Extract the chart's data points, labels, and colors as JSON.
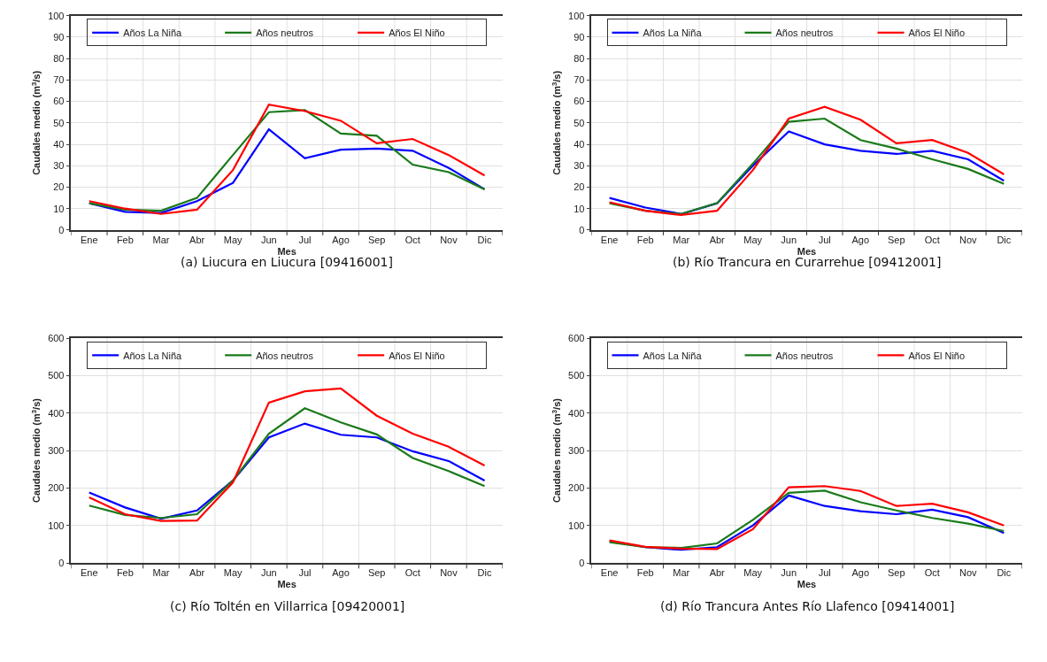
{
  "chart_data": [
    {
      "type": "line",
      "xlabel": "Mes",
      "ylabel": "Caudales medio (m$^{3}$/s)",
      "categories": [
        "Ene",
        "Feb",
        "Mar",
        "Abr",
        "May",
        "Jun",
        "Jul",
        "Ago",
        "Sep",
        "Oct",
        "Nov",
        "Dic"
      ],
      "ylim": [
        0,
        100
      ],
      "yticks": [
        0,
        10,
        20,
        30,
        40,
        50,
        60,
        70,
        80,
        90,
        100
      ],
      "grid": true,
      "legend": "top",
      "marker": "none",
      "line_style": "solid",
      "annotations": [
        "(a) Liucura en Liucura [09416001]"
      ],
      "series": [
        {
          "name": "Años La Niña",
          "color": "#0000ff",
          "values": [
            12.5,
            8.5,
            8,
            13.5,
            22,
            47,
            33.5,
            37.5,
            38,
            37,
            29,
            19
          ]
        },
        {
          "name": "Años neutros",
          "color": "#1a7a1a",
          "values": [
            12.5,
            9.5,
            9,
            15,
            35,
            55,
            56,
            45,
            44,
            30.5,
            27,
            19
          ]
        },
        {
          "name": "Años El Niño",
          "color": "#ff0000",
          "values": [
            13.5,
            10,
            7.5,
            9.5,
            28,
            58.5,
            55.5,
            51,
            40.5,
            42.5,
            35,
            25.5
          ]
        }
      ]
    },
    {
      "type": "line",
      "xlabel": "Mes",
      "ylabel": "Caudales medio (m$^{3}$/s)",
      "categories": [
        "Ene",
        "Feb",
        "Mar",
        "Abr",
        "May",
        "Jun",
        "Jul",
        "Ago",
        "Sep",
        "Oct",
        "Nov",
        "Dic"
      ],
      "ylim": [
        0,
        100
      ],
      "yticks": [
        0,
        10,
        20,
        30,
        40,
        50,
        60,
        70,
        80,
        90,
        100
      ],
      "grid": true,
      "legend": "top",
      "marker": "none",
      "line_style": "solid",
      "annotations": [
        "(b) Río Trancura en Curarrehue [09412001]"
      ],
      "series": [
        {
          "name": "Años La Niña",
          "color": "#0000ff",
          "values": [
            15,
            10.5,
            7.5,
            12.5,
            30,
            46,
            40,
            37,
            35.5,
            37,
            33,
            23
          ]
        },
        {
          "name": "Años neutros",
          "color": "#1a7a1a",
          "values": [
            12.5,
            9,
            7.5,
            12.5,
            31,
            50.5,
            52,
            42,
            38,
            33,
            28.5,
            21.5
          ]
        },
        {
          "name": "Años El Niño",
          "color": "#ff0000",
          "values": [
            13,
            9,
            7,
            9,
            28,
            52,
            57.5,
            51.5,
            40.5,
            42,
            36,
            26
          ]
        }
      ]
    },
    {
      "type": "line",
      "xlabel": "Mes",
      "ylabel": "Caudales medio (m$^{3}$/s)",
      "categories": [
        "Ene",
        "Feb",
        "Mar",
        "Abr",
        "May",
        "Jun",
        "Jul",
        "Ago",
        "Sep",
        "Oct",
        "Nov",
        "Dic"
      ],
      "ylim": [
        0,
        600
      ],
      "yticks": [
        0,
        100,
        200,
        300,
        400,
        500,
        600
      ],
      "grid": true,
      "legend": "top",
      "marker": "none",
      "line_style": "solid",
      "annotations": [
        "(c) Río Toltén en Villarrica [09420001]"
      ],
      "series": [
        {
          "name": "Años La Niña",
          "color": "#0000ff",
          "values": [
            188,
            148,
            118,
            140,
            220,
            335,
            372,
            342,
            335,
            298,
            272,
            220
          ]
        },
        {
          "name": "Años neutros",
          "color": "#1a7a1a",
          "values": [
            153,
            128,
            120,
            130,
            220,
            345,
            413,
            375,
            343,
            280,
            245,
            205
          ]
        },
        {
          "name": "Años El Niño",
          "color": "#ff0000",
          "values": [
            175,
            130,
            112,
            113,
            215,
            428,
            458,
            466,
            393,
            345,
            310,
            260
          ]
        }
      ]
    },
    {
      "type": "line",
      "xlabel": "Mes",
      "ylabel": "Caudales medio (m$^{3}$/s)",
      "categories": [
        "Ene",
        "Feb",
        "Mar",
        "Abr",
        "May",
        "Jun",
        "Jul",
        "Ago",
        "Sep",
        "Oct",
        "Nov",
        "Dic"
      ],
      "ylim": [
        0,
        600
      ],
      "yticks": [
        0,
        100,
        200,
        300,
        400,
        500,
        600
      ],
      "grid": true,
      "legend": "top",
      "marker": "none",
      "line_style": "solid",
      "annotations": [
        "(d) Río Trancura Antes Río Llafenco [09414001]"
      ],
      "series": [
        {
          "name": "Años La Niña",
          "color": "#0000ff",
          "values": [
            58,
            42,
            35,
            42,
            100,
            180,
            152,
            138,
            130,
            142,
            122,
            80
          ]
        },
        {
          "name": "Años neutros",
          "color": "#1a7a1a",
          "values": [
            55,
            42,
            40,
            52,
            115,
            187,
            193,
            162,
            140,
            120,
            105,
            85
          ]
        },
        {
          "name": "Años El Niño",
          "color": "#ff0000",
          "values": [
            60,
            43,
            38,
            37,
            90,
            202,
            205,
            192,
            152,
            158,
            135,
            100
          ]
        }
      ]
    }
  ]
}
